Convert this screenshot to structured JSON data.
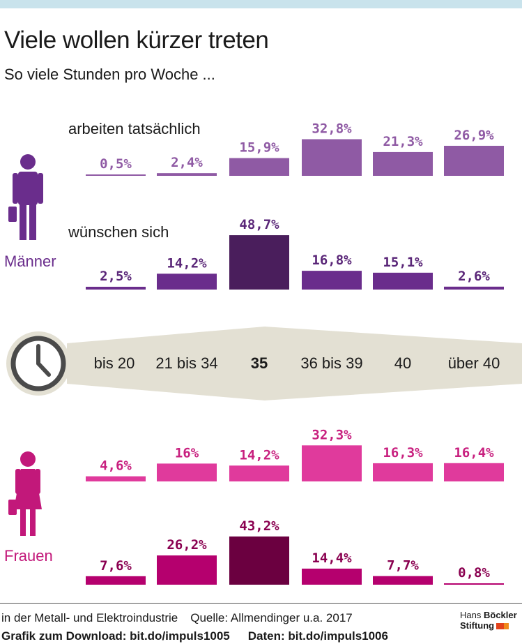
{
  "header": {
    "title": "Viele wollen kürzer treten",
    "subtitle": "So viele Stunden pro Woche ..."
  },
  "labels": {
    "actual": "arbeiten tatsächlich",
    "desired": "wünschen sich",
    "men": "Männer",
    "women": "Frauen"
  },
  "chart_data": {
    "type": "bar",
    "categories": [
      "bis 20",
      "21 bis 34",
      "35",
      "36 bis 39",
      "40",
      "über 40"
    ],
    "highlight_category": "35",
    "units": "%",
    "groups": [
      {
        "gender": "Männer",
        "series": [
          {
            "name": "arbeiten tatsächlich",
            "values": [
              0.5,
              2.4,
              15.9,
              32.8,
              21.3,
              26.9
            ],
            "labels": [
              "0,5%",
              "2,4%",
              "15,9%",
              "32,8%",
              "21,3%",
              "26,9%"
            ],
            "color": "#8f5aa4",
            "label_color": "#8f5aa4"
          },
          {
            "name": "wünschen sich",
            "values": [
              2.5,
              14.2,
              48.7,
              16.8,
              15.1,
              2.6
            ],
            "labels": [
              "2,5%",
              "14,2%",
              "48,7%",
              "16,8%",
              "15,1%",
              "2,6%"
            ],
            "color": "#6a2d8c",
            "highlight_color": "#4a1e5c",
            "label_color": "#5a2678"
          }
        ]
      },
      {
        "gender": "Frauen",
        "series": [
          {
            "name": "actual",
            "values": [
              4.6,
              16,
              14.2,
              32.3,
              16.3,
              16.4
            ],
            "labels": [
              "4,6%",
              "16%",
              "14,2%",
              "32,3%",
              "16,3%",
              "16,4%"
            ],
            "color": "#e03a9c",
            "label_color": "#c8207f"
          },
          {
            "name": "desired",
            "values": [
              7.6,
              26.2,
              43.2,
              14.4,
              7.7,
              0.8
            ],
            "labels": [
              "7,6%",
              "26,2%",
              "43,2%",
              "14,4%",
              "7,7%",
              "0,8%"
            ],
            "color": "#b5006e",
            "highlight_color": "#6b0040",
            "label_color": "#8a0050"
          }
        ]
      }
    ],
    "colors": {
      "men_icon": "#6a2d8c",
      "women_icon": "#c2187a",
      "band": "#e3e0d3",
      "clock": "#4a4a4a"
    }
  },
  "footer": {
    "note": "in der Metall- und Elektroindustrie",
    "source": "Quelle: Allmendinger u.a. 2017",
    "download": "Grafik zum Download: bit.do/impuls1005",
    "data": "Daten: bit.do/impuls1006",
    "logo_line1_a": "Hans",
    "logo_line1_b": "Böckler",
    "logo_line2": "Stiftung"
  }
}
